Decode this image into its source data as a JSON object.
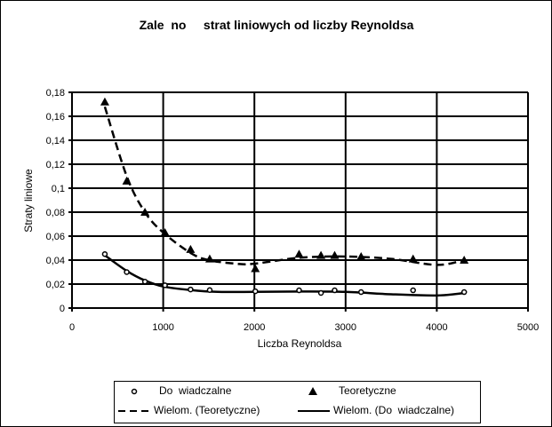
{
  "chart_data": {
    "type": "scatter",
    "title": "Zale  no     strat liniowych od liczby Reynoldsa",
    "xlabel": "Liczba Reynoldsa",
    "ylabel": "Straty liniowe",
    "xlim": [
      0,
      5000
    ],
    "ylim": [
      0,
      0.18
    ],
    "xticks": [
      "0",
      "1000",
      "2000",
      "3000",
      "4000",
      "5000"
    ],
    "yticks": [
      "0",
      "0,02",
      "0,04",
      "0,06",
      "0,08",
      "0,1",
      "0,12",
      "0,14",
      "0,16",
      "0,18"
    ],
    "grid": true,
    "legend_position": "bottom",
    "series": [
      {
        "name": "Do  wiadczalne",
        "marker": "circle",
        "x": [
          360,
          600,
          800,
          1020,
          1300,
          1510,
          2010,
          2490,
          2730,
          2880,
          3170,
          3740,
          4300
        ],
        "y": [
          0.045,
          0.03,
          0.022,
          0.019,
          0.0155,
          0.015,
          0.014,
          0.0148,
          0.0126,
          0.0148,
          0.0133,
          0.0148,
          0.0133
        ]
      },
      {
        "name": "Teoretyczne",
        "marker": "triangle",
        "x": [
          360,
          600,
          800,
          1020,
          1300,
          1510,
          2010,
          2490,
          2730,
          2880,
          3170,
          3740,
          4300
        ],
        "y": [
          0.172,
          0.106,
          0.08,
          0.063,
          0.049,
          0.041,
          0.033,
          0.045,
          0.044,
          0.044,
          0.043,
          0.041,
          0.04
        ]
      }
    ],
    "trendlines": [
      {
        "name": "Wielom. (Teoretyczne)",
        "style": "dashed",
        "x": [
          360,
          600,
          800,
          1000,
          1300,
          1500,
          1800,
          2000,
          2500,
          3000,
          3500,
          4000,
          4300
        ],
        "y": [
          0.168,
          0.11,
          0.08,
          0.063,
          0.046,
          0.04,
          0.037,
          0.037,
          0.042,
          0.043,
          0.041,
          0.036,
          0.04
        ]
      },
      {
        "name": "Wielom. (Do  wiadczalne)",
        "style": "solid",
        "x": [
          360,
          600,
          800,
          1000,
          1300,
          1600,
          2000,
          2500,
          3000,
          3500,
          4000,
          4300
        ],
        "y": [
          0.044,
          0.031,
          0.023,
          0.018,
          0.015,
          0.0135,
          0.0135,
          0.0138,
          0.0135,
          0.0115,
          0.0105,
          0.0125
        ]
      }
    ]
  }
}
